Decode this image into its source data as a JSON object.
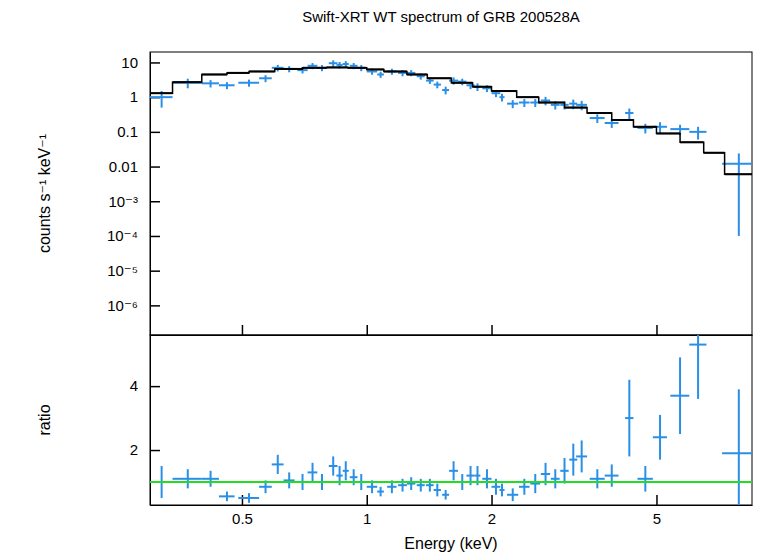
{
  "chart_data": [
    {
      "type": "scatter",
      "title": "Swift-XRT WT spectrum of GRB 200528A",
      "ylabel": "counts s⁻¹ keV⁻¹",
      "log": true,
      "tick_labels": "y",
      "xlim": [
        0.3,
        8.5
      ],
      "xticks": [
        0.5,
        1,
        2,
        5
      ],
      "ylim": [
        1.4e-07,
        20
      ],
      "yticks": [
        10,
        1,
        0.1,
        0.01,
        {
          "value": 0.001,
          "label": "10⁻³"
        },
        {
          "value": 0.0001,
          "label": "10⁻⁴"
        },
        {
          "value": 1e-05,
          "label": "10⁻⁵"
        },
        {
          "value": 1e-06,
          "label": "10⁻⁶"
        }
      ],
      "series": [
        {
          "type": "errorbar",
          "color": "#2a8fe6",
          "x": [
            0.32,
            0.37,
            0.42,
            0.46,
            0.52,
            0.57,
            0.61,
            0.65,
            0.7,
            0.74,
            0.78,
            0.83,
            0.86,
            0.89,
            0.93,
            0.97,
            1.03,
            1.08,
            1.15,
            1.22,
            1.28,
            1.35,
            1.42,
            1.48,
            1.55,
            1.62,
            1.7,
            1.78,
            1.85,
            1.95,
            2.05,
            2.12,
            2.25,
            2.4,
            2.55,
            2.7,
            2.85,
            3.0,
            3.15,
            3.3,
            3.6,
            3.9,
            4.3,
            4.7,
            5.1,
            5.7,
            6.3,
            7.9
          ],
          "xerr": [
            0.02,
            0.03,
            0.02,
            0.02,
            0.03,
            0.02,
            0.02,
            0.02,
            0.02,
            0.02,
            0.02,
            0.02,
            0.015,
            0.015,
            0.02,
            0.02,
            0.03,
            0.02,
            0.03,
            0.03,
            0.03,
            0.03,
            0.03,
            0.03,
            0.03,
            0.04,
            0.04,
            0.04,
            0.03,
            0.05,
            0.05,
            0.03,
            0.07,
            0.07,
            0.07,
            0.07,
            0.07,
            0.07,
            0.07,
            0.1,
            0.15,
            0.15,
            0.1,
            0.2,
            0.2,
            0.3,
            0.3,
            0.7
          ],
          "values": [
            1.0,
            2.6,
            2.5,
            2.2,
            2.6,
            3.5,
            7.0,
            6.5,
            6.0,
            8.0,
            7.0,
            9.5,
            8.5,
            9.0,
            8.0,
            7.0,
            5.5,
            4.5,
            5.5,
            5.0,
            5.0,
            4.0,
            3.0,
            2.3,
            1.6,
            3.0,
            2.8,
            2.2,
            2.0,
            1.8,
            1.3,
            1.0,
            0.65,
            0.7,
            0.7,
            0.8,
            0.6,
            0.6,
            0.65,
            0.6,
            0.25,
            0.18,
            0.35,
            0.13,
            0.14,
            0.12,
            0.1,
            0.012
          ],
          "yerr": [
            0.5,
            0.8,
            0.6,
            0.5,
            0.6,
            0.8,
            1.5,
            1.3,
            1.2,
            1.6,
            1.4,
            2.0,
            1.8,
            1.9,
            1.6,
            1.4,
            1.1,
            0.9,
            1.1,
            1.0,
            1.0,
            0.8,
            0.6,
            0.5,
            0.4,
            0.7,
            0.6,
            0.5,
            0.5,
            0.4,
            0.3,
            0.25,
            0.17,
            0.18,
            0.18,
            0.22,
            0.16,
            0.16,
            0.2,
            0.18,
            0.07,
            0.05,
            0.12,
            0.04,
            0.05,
            0.04,
            0.04,
            0.0119
          ]
        },
        {
          "type": "step",
          "color": "#000000",
          "bins": [
            0.3,
            0.34,
            0.4,
            0.46,
            0.52,
            0.6,
            0.7,
            0.8,
            0.9,
            1.0,
            1.1,
            1.25,
            1.4,
            1.6,
            1.8,
            2.0,
            2.3,
            2.6,
            3.0,
            3.4,
            3.9,
            4.4,
            5.0,
            5.7,
            6.5,
            7.3,
            8.5
          ],
          "values": [
            1.3,
            2.7,
            4.5,
            5.0,
            5.5,
            6.5,
            7.0,
            7.2,
            7.0,
            6.3,
            5.5,
            4.5,
            3.5,
            2.6,
            2.0,
            1.5,
            1.0,
            0.7,
            0.5,
            0.35,
            0.22,
            0.14,
            0.09,
            0.05,
            0.025,
            0.006
          ]
        }
      ]
    },
    {
      "type": "scatter",
      "xlabel": "Energy (keV)",
      "ylabel": "ratio",
      "log": "x",
      "xlim": [
        0.3,
        8.5
      ],
      "xticks": [
        0.5,
        1,
        2,
        5
      ],
      "ylim": [
        0.28,
        5.6
      ],
      "yticks": [
        2,
        4
      ],
      "series": [
        {
          "type": "errorbar",
          "color": "#2a8fe6",
          "x": [
            0.32,
            0.37,
            0.42,
            0.46,
            0.52,
            0.57,
            0.61,
            0.65,
            0.7,
            0.74,
            0.78,
            0.83,
            0.86,
            0.89,
            0.93,
            0.97,
            1.03,
            1.08,
            1.15,
            1.22,
            1.28,
            1.35,
            1.42,
            1.48,
            1.55,
            1.62,
            1.7,
            1.78,
            1.85,
            1.95,
            2.05,
            2.12,
            2.25,
            2.4,
            2.55,
            2.7,
            2.85,
            3.0,
            3.15,
            3.3,
            3.6,
            3.9,
            4.3,
            4.7,
            5.1,
            5.7,
            6.3,
            7.9
          ],
          "xerr": [
            0.02,
            0.03,
            0.02,
            0.02,
            0.03,
            0.02,
            0.02,
            0.02,
            0.02,
            0.02,
            0.02,
            0.02,
            0.015,
            0.015,
            0.02,
            0.02,
            0.03,
            0.02,
            0.03,
            0.03,
            0.03,
            0.03,
            0.03,
            0.03,
            0.03,
            0.04,
            0.04,
            0.04,
            0.03,
            0.05,
            0.05,
            0.03,
            0.07,
            0.07,
            0.07,
            0.07,
            0.07,
            0.07,
            0.07,
            0.1,
            0.15,
            0.15,
            0.1,
            0.2,
            0.2,
            0.3,
            0.3,
            0.7
          ],
          "values": [
            1.0,
            1.1,
            1.1,
            0.55,
            0.5,
            0.85,
            1.55,
            1.05,
            1.0,
            1.3,
            1.0,
            1.5,
            1.2,
            1.35,
            1.15,
            1.0,
            0.85,
            0.7,
            0.85,
            0.9,
            0.95,
            0.9,
            0.9,
            0.75,
            0.6,
            1.35,
            1.0,
            1.2,
            1.2,
            1.1,
            0.85,
            0.75,
            0.6,
            0.85,
            0.95,
            1.25,
            1.1,
            1.35,
            1.7,
            1.8,
            1.1,
            1.2,
            3.0,
            1.1,
            2.4,
            3.7,
            5.3,
            1.9
          ],
          "yerr": [
            0.5,
            0.3,
            0.25,
            0.15,
            0.15,
            0.2,
            0.3,
            0.25,
            0.25,
            0.3,
            0.25,
            0.3,
            0.3,
            0.3,
            0.25,
            0.25,
            0.2,
            0.15,
            0.2,
            0.2,
            0.2,
            0.2,
            0.2,
            0.2,
            0.15,
            0.3,
            0.25,
            0.3,
            0.3,
            0.3,
            0.25,
            0.2,
            0.2,
            0.25,
            0.3,
            0.35,
            0.3,
            0.4,
            0.5,
            0.5,
            0.3,
            0.35,
            1.2,
            0.4,
            0.7,
            1.2,
            1.7,
            2.0
          ]
        },
        {
          "type": "line",
          "color": "#22dd22",
          "x": [
            0.3,
            8.5
          ],
          "values": [
            1,
            1
          ]
        }
      ]
    }
  ]
}
